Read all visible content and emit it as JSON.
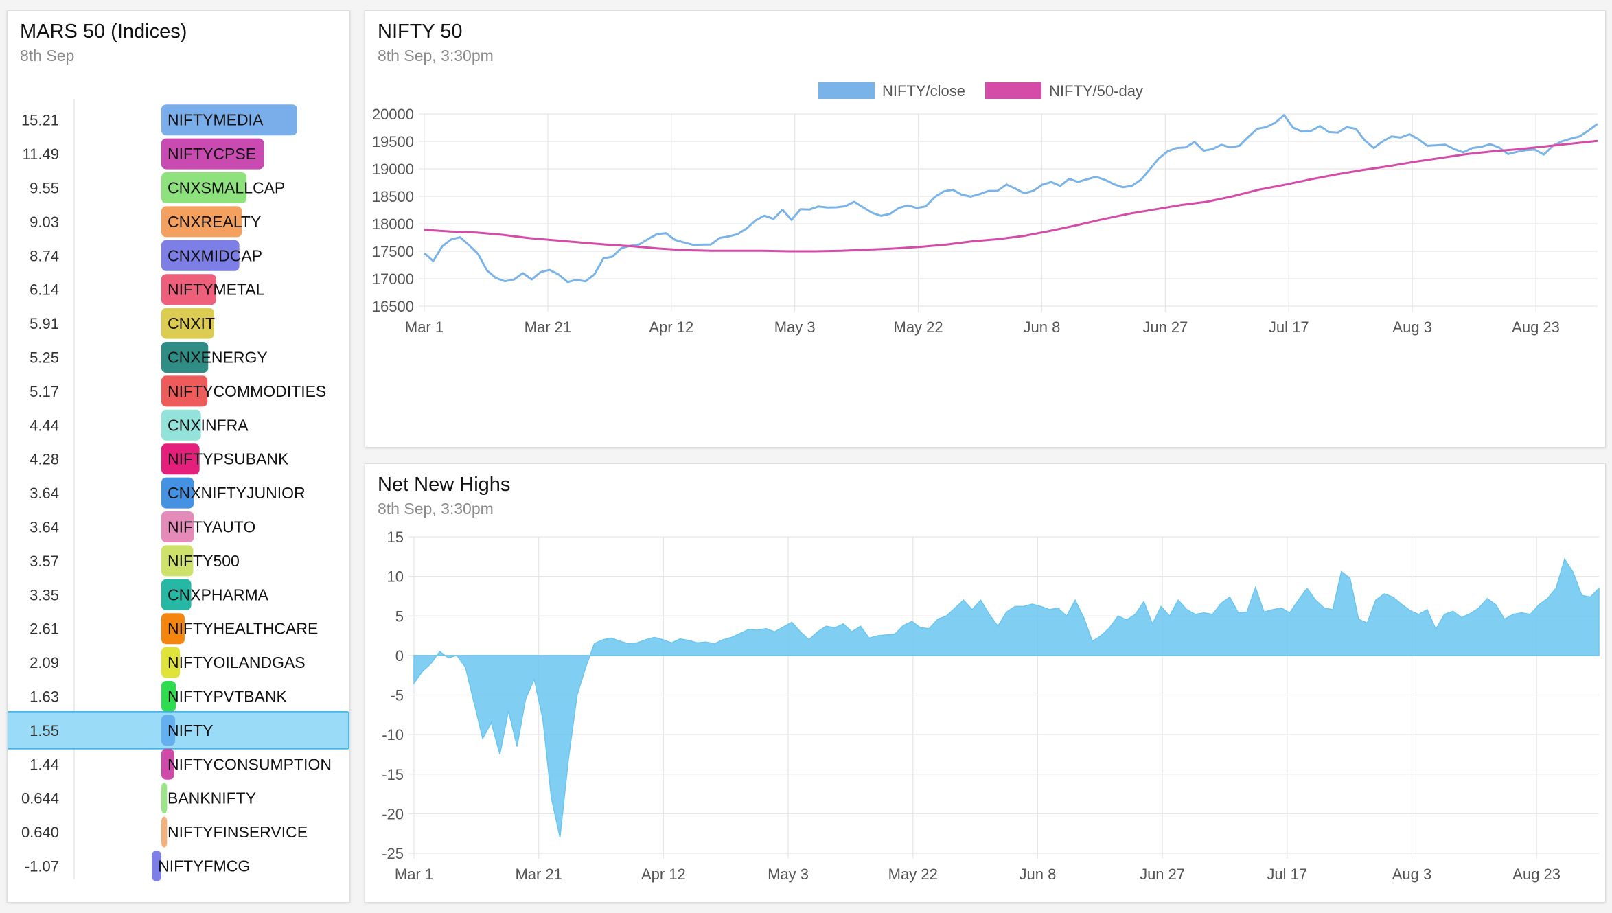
{
  "left_panel": {
    "title": "MARS 50 (Indices)",
    "subtitle": "8th Sep"
  },
  "nifty_panel": {
    "title": "NIFTY 50",
    "subtitle": "8th Sep, 3:30pm"
  },
  "nnh_panel": {
    "title": "Net New Highs",
    "subtitle": "8th Sep, 3:30pm"
  },
  "chart_data": [
    {
      "type": "bar",
      "orientation": "horizontal",
      "title": "MARS 50 (Indices)",
      "selected": "NIFTY",
      "categories": [
        "NIFTYMEDIA",
        "NIFTYCPSE",
        "CNXSMALLCAP",
        "CNXREALTY",
        "CNXMIDCAP",
        "NIFTYMETAL",
        "CNXIT",
        "CNXENERGY",
        "NIFTYCOMMODITIES",
        "CNXINFRA",
        "NIFTYPSUBANK",
        "CNXNIFTYJUNIOR",
        "NIFTYAUTO",
        "NIFTY500",
        "CNXPHARMA",
        "NIFTYHEALTHCARE",
        "NIFTYOILANDGAS",
        "NIFTYPVTBANK",
        "NIFTY",
        "NIFTYCONSUMPTION",
        "BANKNIFTY",
        "NIFTYFINSERVICE",
        "NIFTYFMCG"
      ],
      "value_labels": [
        "15.21",
        "11.49",
        "9.55",
        "9.03",
        "8.74",
        "6.14",
        "5.91",
        "5.25",
        "5.17",
        "4.44",
        "4.28",
        "3.64",
        "3.64",
        "3.57",
        "3.35",
        "2.61",
        "2.09",
        "1.63",
        "1.55",
        "1.44",
        "0.644",
        "0.640",
        "-1.07"
      ],
      "values": [
        15.21,
        11.49,
        9.55,
        9.03,
        8.74,
        6.14,
        5.91,
        5.25,
        5.17,
        4.44,
        4.28,
        3.64,
        3.64,
        3.57,
        3.35,
        2.61,
        2.09,
        1.63,
        1.55,
        1.44,
        0.644,
        0.64,
        -1.07
      ],
      "colors": [
        "#7aaeea",
        "#c94ab0",
        "#8de27d",
        "#f4a15f",
        "#7d7fe6",
        "#ee5f7c",
        "#dccc52",
        "#2f8d86",
        "#ed5b5b",
        "#93e3db",
        "#e5207c",
        "#4591e2",
        "#e48bb9",
        "#cee16a",
        "#26b8a4",
        "#f4850f",
        "#dfe33a",
        "#2fdb4f",
        "#64b0ee",
        "#cd4aa8",
        "#9be488",
        "#f4b07b",
        "#7d7fe6"
      ]
    },
    {
      "type": "line",
      "title": "NIFTY 50",
      "x_ticks": [
        "Mar 1",
        "Mar 21",
        "Apr 12",
        "May 3",
        "May 22",
        "Jun 8",
        "Jun 27",
        "Jul 17",
        "Aug 3",
        "Aug 23"
      ],
      "y_ticks": [
        20000,
        19500,
        19000,
        18500,
        18000,
        17500,
        17000,
        16500
      ],
      "ylim": [
        16500,
        20000
      ],
      "legend_position": "top",
      "series": [
        {
          "name": "NIFTY/close",
          "color": "#7ab3e8",
          "values": [
            17465,
            17321,
            17590,
            17715,
            17755,
            17611,
            17451,
            17151,
            17013,
            16954,
            16985,
            17101,
            16986,
            17123,
            17161,
            17076,
            16940,
            16980,
            16953,
            17081,
            17370,
            17400,
            17557,
            17600,
            17624,
            17724,
            17812,
            17828,
            17706,
            17660,
            17618,
            17620,
            17624,
            17744,
            17770,
            17814,
            17915,
            18065,
            18148,
            18090,
            18255,
            18070,
            18265,
            18260,
            18315,
            18297,
            18300,
            18320,
            18400,
            18300,
            18200,
            18145,
            18180,
            18290,
            18335,
            18289,
            18318,
            18490,
            18590,
            18620,
            18530,
            18495,
            18540,
            18599,
            18600,
            18715,
            18640,
            18555,
            18600,
            18712,
            18760,
            18690,
            18817,
            18762,
            18810,
            18856,
            18800,
            18720,
            18665,
            18690,
            18800,
            18990,
            19190,
            19320,
            19380,
            19390,
            19490,
            19330,
            19360,
            19440,
            19390,
            19420,
            19580,
            19730,
            19760,
            19840,
            19980,
            19750,
            19680,
            19690,
            19780,
            19670,
            19660,
            19760,
            19730,
            19520,
            19380,
            19500,
            19590,
            19570,
            19630,
            19540,
            19420,
            19430,
            19440,
            19360,
            19300,
            19380,
            19400,
            19450,
            19390,
            19270,
            19310,
            19340,
            19350,
            19260,
            19420,
            19500,
            19550,
            19590,
            19700,
            19820
          ]
        },
        {
          "name": "NIFTY/50-day",
          "color": "#d44ba8",
          "values": [
            17890,
            17860,
            17840,
            17800,
            17740,
            17700,
            17660,
            17620,
            17590,
            17550,
            17520,
            17510,
            17510,
            17510,
            17500,
            17500,
            17510,
            17530,
            17550,
            17580,
            17620,
            17680,
            17720,
            17780,
            17870,
            17970,
            18080,
            18180,
            18260,
            18340,
            18400,
            18500,
            18620,
            18710,
            18810,
            18900,
            18980,
            19050,
            19130,
            19200,
            19270,
            19320,
            19360,
            19410,
            19460,
            19510
          ]
        }
      ]
    },
    {
      "type": "area",
      "title": "Net New Highs",
      "x_ticks": [
        "Mar 1",
        "Mar 21",
        "Apr 12",
        "May 3",
        "May 22",
        "Jun 8",
        "Jun 27",
        "Jul 17",
        "Aug 3",
        "Aug 23"
      ],
      "y_ticks": [
        15,
        10,
        5,
        0,
        -5,
        -10,
        -15,
        -20,
        -25
      ],
      "ylim": [
        -25,
        15
      ],
      "color": "#6ac6f0",
      "values": [
        -3.5,
        -2,
        -1,
        0.5,
        -0.3,
        0,
        -1.5,
        -6,
        -10.5,
        -8.5,
        -12.5,
        -7,
        -11.5,
        -5.5,
        -3,
        -8,
        -18,
        -23,
        -13,
        -5,
        -1.5,
        1.5,
        2,
        2.2,
        1.8,
        1.5,
        1.6,
        2,
        2.3,
        2,
        1.6,
        2.1,
        1.9,
        1.6,
        1.7,
        1.5,
        2,
        2.3,
        2.8,
        3.3,
        3.2,
        3.4,
        3,
        3.6,
        4.2,
        3,
        2,
        3,
        3.7,
        3.5,
        4,
        3,
        3.7,
        2.2,
        2.5,
        2.6,
        2.7,
        3.8,
        4.3,
        3.5,
        3.4,
        4.6,
        5,
        6,
        7,
        5.8,
        7,
        5.2,
        3.7,
        5.5,
        6.2,
        6.2,
        6.5,
        6.2,
        5.8,
        6,
        5,
        7,
        4.8,
        1.8,
        2.5,
        3.5,
        5,
        4.5,
        5.2,
        6.8,
        4,
        6.2,
        5,
        7,
        5.8,
        5.2,
        5.4,
        5.2,
        6.6,
        7.4,
        5.4,
        5.5,
        8.6,
        5.5,
        5.8,
        6,
        5.4,
        7,
        8.5,
        7,
        6,
        5.8,
        10.6,
        9.8,
        4.6,
        4.1,
        7,
        7.8,
        7.4,
        6.5,
        5.7,
        5.2,
        5.8,
        3.3,
        5.2,
        5.6,
        4.8,
        5.3,
        6,
        7.2,
        6.4,
        4.6,
        5.2,
        5.4,
        5.2,
        6.4,
        7.2,
        8.5,
        12.2,
        10.5,
        7.6,
        7.4,
        8.5
      ]
    }
  ]
}
